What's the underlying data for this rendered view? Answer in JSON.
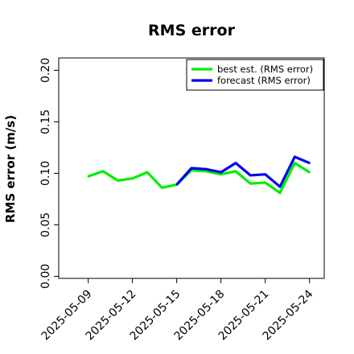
{
  "chart_data": {
    "type": "line",
    "title": "RMS error",
    "xlabel": "",
    "ylabel": "RMS error (m/s)",
    "x": [
      "2025-05-08",
      "2025-05-09",
      "2025-05-10",
      "2025-05-11",
      "2025-05-12",
      "2025-05-13",
      "2025-05-14",
      "2025-05-15",
      "2025-05-16",
      "2025-05-17",
      "2025-05-18",
      "2025-05-19",
      "2025-05-20",
      "2025-05-21",
      "2025-05-22",
      "2025-05-23",
      "2025-05-24"
    ],
    "xticks": [
      "2025-05-09",
      "2025-05-12",
      "2025-05-15",
      "2025-05-18",
      "2025-05-21",
      "2025-05-24"
    ],
    "xtick_colors": [
      "#000000",
      "#000000",
      "#228B22",
      "#000000",
      "#000000",
      "#000000"
    ],
    "xlim": [
      "2025-05-07",
      "2025-05-25"
    ],
    "ylim": [
      -0.002,
      0.212
    ],
    "yticks": [
      "0.00",
      "0.05",
      "0.10",
      "0.15",
      "0.20"
    ],
    "grid": false,
    "legend_position": "top-right",
    "series": [
      {
        "name": "best est. (RMS error)",
        "color": "#00ee00",
        "values": [
          null,
          0.097,
          0.102,
          0.093,
          0.095,
          0.101,
          0.086,
          0.089,
          0.103,
          0.102,
          0.099,
          0.102,
          0.09,
          0.091,
          0.081,
          0.11,
          0.101
        ]
      },
      {
        "name": "forecast (RMS error)",
        "color": "#0000ee",
        "values": [
          null,
          null,
          null,
          null,
          null,
          null,
          null,
          0.089,
          0.105,
          0.104,
          0.101,
          0.11,
          0.098,
          0.099,
          0.087,
          0.116,
          0.11
        ]
      }
    ]
  }
}
